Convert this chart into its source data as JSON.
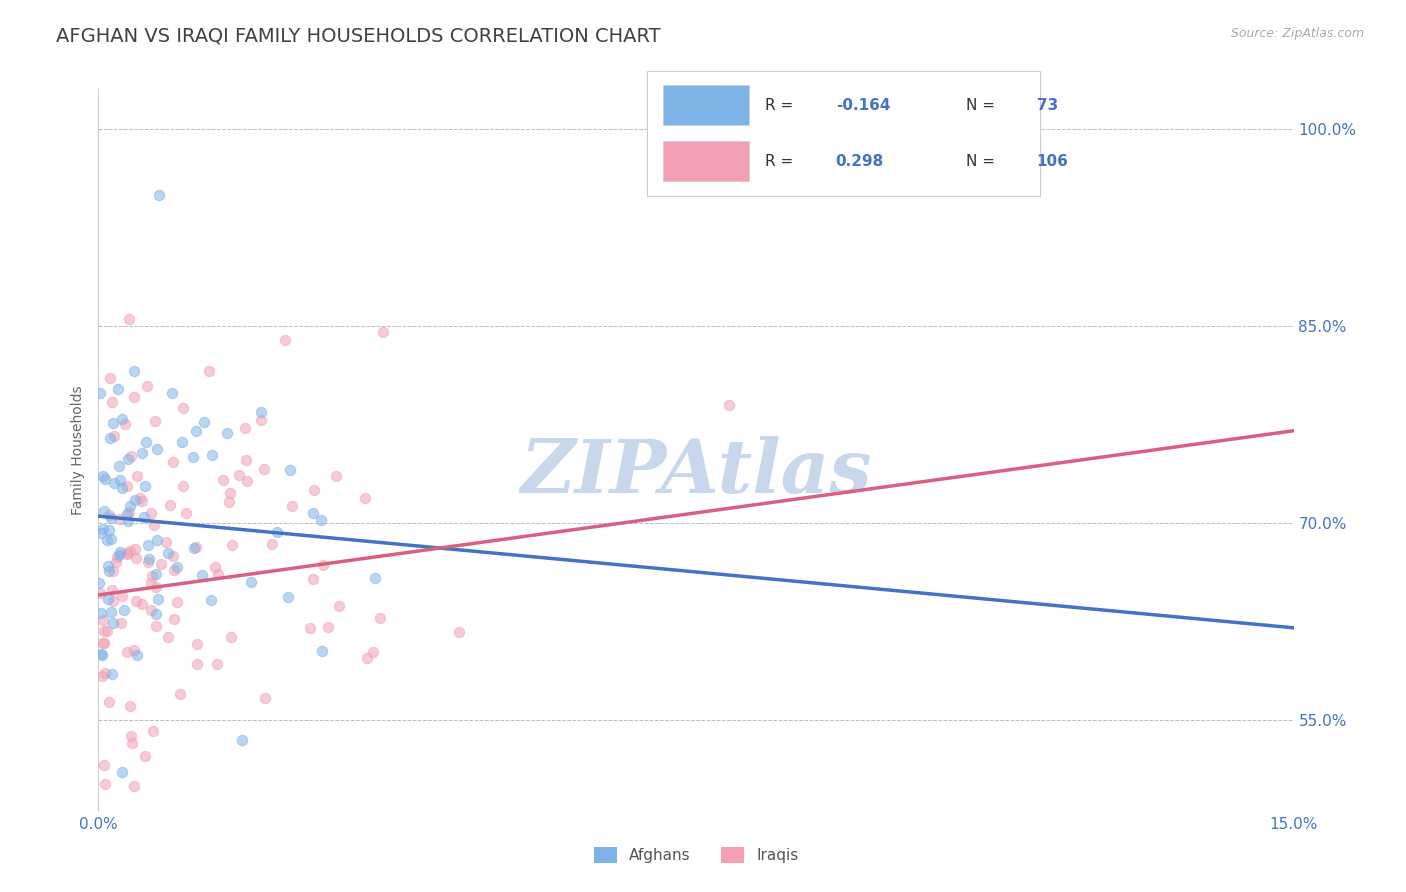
{
  "title": "AFGHAN VS IRAQI FAMILY HOUSEHOLDS CORRELATION CHART",
  "source_text": "Source: ZipAtlas.com",
  "ylabel": "Family Households",
  "xlim": [
    0.0,
    15.0
  ],
  "ylim": [
    48.0,
    103.0
  ],
  "xtick_vals": [
    0.0,
    15.0
  ],
  "xticklabels": [
    "0.0%",
    "15.0%"
  ],
  "ytick_vals": [
    55.0,
    70.0,
    85.0,
    100.0
  ],
  "yticklabels": [
    "55.0%",
    "70.0%",
    "85.0%",
    "100.0%"
  ],
  "afghan_color": "#7EB3E8",
  "iraqi_color": "#F4A0B4",
  "afghan_line_color": "#4472C4",
  "iraqi_line_color": "#D96080",
  "legend_R_afghan": "-0.164",
  "legend_N_afghan": "73",
  "legend_R_iraqi": "0.298",
  "legend_N_iraqi": "106",
  "background_color": "#FFFFFF",
  "grid_color": "#AAAAAA",
  "title_color": "#404040",
  "title_fontsize": 14,
  "tick_color": "#4472C4",
  "watermark_text": "ZIPAtlas",
  "watermark_color": "#C8D8EC",
  "afghans_label": "Afghans",
  "iraqis_label": "Iraqis",
  "marker_size": 55,
  "marker_alpha": 0.55,
  "line_width": 2.5,
  "afghan_line_y0": 70.5,
  "afghan_line_y1": 62.0,
  "iraqi_line_y0": 64.5,
  "iraqi_line_y1": 77.0
}
